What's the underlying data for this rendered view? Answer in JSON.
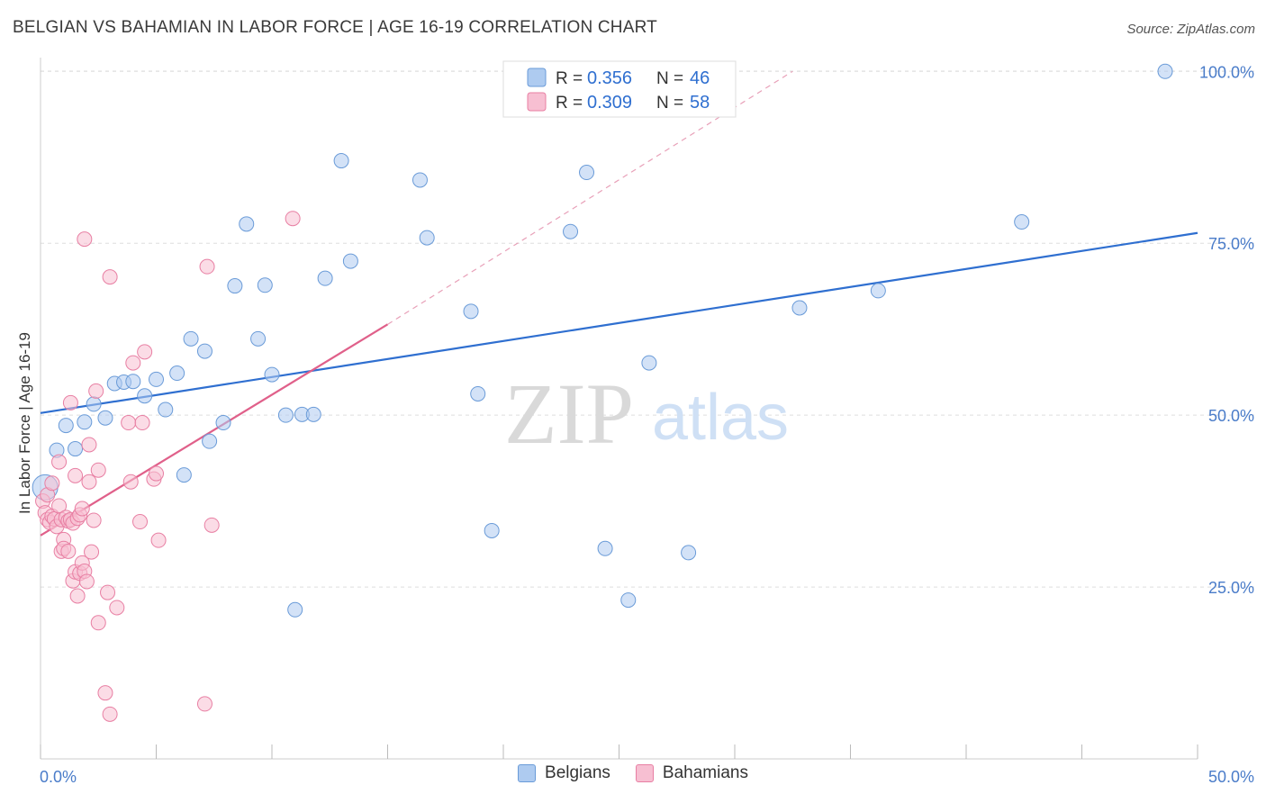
{
  "header": {
    "title": "BELGIAN VS BAHAMIAN IN LABOR FORCE | AGE 16-19 CORRELATION CHART",
    "source": "Source: ZipAtlas.com"
  },
  "colors": {
    "blue_fill": "#aecbf0",
    "blue_stroke": "#6a9bd8",
    "blue_line": "#2f6fd0",
    "pink_fill": "#f7bfd2",
    "pink_stroke": "#e87fa3",
    "pink_line": "#e0608a",
    "tick_label": "#4a7cc9",
    "grid": "#dedede"
  },
  "legend_top": [
    {
      "r_label": "R =",
      "r_value": "0.356",
      "n_label": "N =",
      "n_value": "46"
    },
    {
      "r_label": "R =",
      "r_value": "0.309",
      "n_label": "N =",
      "n_value": "58"
    }
  ],
  "watermark": {
    "zip": "ZIP",
    "atlas": "atlas"
  },
  "chart_data": {
    "type": "scatter",
    "title": "BELGIAN VS BAHAMIAN IN LABOR FORCE | AGE 16-19 CORRELATION CHART",
    "xlabel": "",
    "ylabel": "In Labor Force | Age 16-19",
    "xlim": [
      0,
      50
    ],
    "ylim": [
      0,
      102
    ],
    "x_tick_labels": [
      {
        "v": 0,
        "label": "0.0%"
      },
      {
        "v": 50,
        "label": "50.0%"
      }
    ],
    "y_tick_labels": [
      {
        "v": 25,
        "label": "25.0%"
      },
      {
        "v": 50,
        "label": "50.0%"
      },
      {
        "v": 75,
        "label": "75.0%"
      },
      {
        "v": 100,
        "label": "100.0%"
      }
    ],
    "series": [
      {
        "name": "Belgians",
        "color": "blue",
        "R": 0.356,
        "N": 46,
        "trend": {
          "x0": 0,
          "y0": 50.3,
          "x1": 50,
          "y1": 76.5
        },
        "points": [
          [
            0.2,
            39.5,
            14
          ],
          [
            0.7,
            44.9,
            8
          ],
          [
            1.1,
            48.5,
            8
          ],
          [
            1.5,
            45.1,
            8
          ],
          [
            1.9,
            49.0,
            8
          ],
          [
            2.3,
            51.6,
            8
          ],
          [
            2.8,
            49.6,
            8
          ],
          [
            3.2,
            54.6,
            8
          ],
          [
            3.6,
            54.8,
            8
          ],
          [
            4.0,
            54.9,
            8
          ],
          [
            4.5,
            52.8,
            8
          ],
          [
            5.0,
            55.2,
            8
          ],
          [
            5.4,
            50.8,
            8
          ],
          [
            5.9,
            56.1,
            8
          ],
          [
            6.2,
            41.3,
            8
          ],
          [
            6.5,
            61.1,
            8
          ],
          [
            7.1,
            59.3,
            8
          ],
          [
            7.3,
            46.2,
            8
          ],
          [
            7.9,
            48.9,
            8
          ],
          [
            8.4,
            68.8,
            8
          ],
          [
            8.9,
            77.8,
            8
          ],
          [
            9.4,
            61.1,
            8
          ],
          [
            9.7,
            68.9,
            8
          ],
          [
            10.0,
            55.9,
            8
          ],
          [
            10.6,
            50.0,
            8
          ],
          [
            11.0,
            21.7,
            8
          ],
          [
            11.3,
            50.1,
            8
          ],
          [
            11.8,
            50.1,
            8
          ],
          [
            12.3,
            69.9,
            8
          ],
          [
            13.0,
            87.0,
            8
          ],
          [
            13.4,
            72.4,
            8
          ],
          [
            16.4,
            84.2,
            8
          ],
          [
            16.7,
            75.8,
            8
          ],
          [
            18.6,
            65.1,
            8
          ],
          [
            18.9,
            53.1,
            8
          ],
          [
            19.5,
            33.2,
            8
          ],
          [
            22.9,
            76.7,
            8
          ],
          [
            23.6,
            85.3,
            8
          ],
          [
            24.4,
            30.6,
            8
          ],
          [
            25.4,
            23.1,
            8
          ],
          [
            26.3,
            57.6,
            8
          ],
          [
            28.0,
            30.0,
            8
          ],
          [
            32.8,
            65.6,
            8
          ],
          [
            36.2,
            68.1,
            8
          ],
          [
            42.4,
            78.1,
            8
          ],
          [
            48.6,
            100.0,
            8
          ]
        ]
      },
      {
        "name": "Bahamians",
        "color": "pink",
        "R": 0.309,
        "N": 58,
        "trend": {
          "x0": 0,
          "y0": 32.5,
          "x1": 15.0,
          "y1": 63.2
        },
        "trend_dashed": {
          "x0": 15.0,
          "y0": 63.2,
          "x1": 32.5,
          "y1": 100.0
        },
        "points": [
          [
            0.1,
            37.5,
            8
          ],
          [
            0.2,
            35.8,
            8
          ],
          [
            0.3,
            34.8,
            8
          ],
          [
            0.3,
            38.4,
            8
          ],
          [
            0.4,
            34.4,
            8
          ],
          [
            0.5,
            40.1,
            8
          ],
          [
            0.5,
            35.3,
            8
          ],
          [
            0.6,
            34.9,
            8
          ],
          [
            0.7,
            33.8,
            8
          ],
          [
            0.8,
            36.8,
            8
          ],
          [
            0.8,
            43.2,
            8
          ],
          [
            0.9,
            30.2,
            8
          ],
          [
            0.9,
            34.8,
            8
          ],
          [
            1.0,
            31.9,
            8
          ],
          [
            1.0,
            30.6,
            8
          ],
          [
            1.1,
            35.1,
            8
          ],
          [
            1.2,
            30.2,
            8
          ],
          [
            1.2,
            34.6,
            8
          ],
          [
            1.3,
            51.8,
            8
          ],
          [
            1.3,
            34.8,
            8
          ],
          [
            1.4,
            34.3,
            8
          ],
          [
            1.4,
            25.9,
            8
          ],
          [
            1.5,
            27.2,
            8
          ],
          [
            1.5,
            41.2,
            8
          ],
          [
            1.6,
            23.7,
            8
          ],
          [
            1.6,
            35.0,
            8
          ],
          [
            1.7,
            35.5,
            8
          ],
          [
            1.7,
            27.0,
            8
          ],
          [
            1.8,
            36.4,
            8
          ],
          [
            1.8,
            28.5,
            8
          ],
          [
            1.9,
            27.3,
            8
          ],
          [
            1.9,
            75.6,
            8
          ],
          [
            2.0,
            25.8,
            8
          ],
          [
            2.1,
            45.7,
            8
          ],
          [
            2.1,
            40.3,
            8
          ],
          [
            2.2,
            30.1,
            8
          ],
          [
            2.3,
            34.7,
            8
          ],
          [
            2.4,
            53.5,
            8
          ],
          [
            2.5,
            19.8,
            8
          ],
          [
            2.5,
            42.0,
            8
          ],
          [
            2.8,
            9.6,
            8
          ],
          [
            2.9,
            24.2,
            8
          ],
          [
            3.0,
            6.5,
            8
          ],
          [
            3.0,
            70.1,
            8
          ],
          [
            3.3,
            22.0,
            8
          ],
          [
            3.8,
            48.9,
            8
          ],
          [
            3.9,
            40.3,
            8
          ],
          [
            4.0,
            57.6,
            8
          ],
          [
            4.3,
            34.5,
            8
          ],
          [
            4.4,
            48.9,
            8
          ],
          [
            4.5,
            59.2,
            8
          ],
          [
            4.9,
            40.7,
            8
          ],
          [
            5.0,
            41.5,
            8
          ],
          [
            5.1,
            31.8,
            8
          ],
          [
            7.2,
            71.6,
            8
          ],
          [
            7.4,
            34.0,
            8
          ],
          [
            7.1,
            8.0,
            8
          ],
          [
            10.9,
            78.6,
            8
          ]
        ]
      }
    ]
  },
  "legend_bottom": [
    {
      "label": "Belgians",
      "color": "blue"
    },
    {
      "label": "Bahamians",
      "color": "pink"
    }
  ]
}
